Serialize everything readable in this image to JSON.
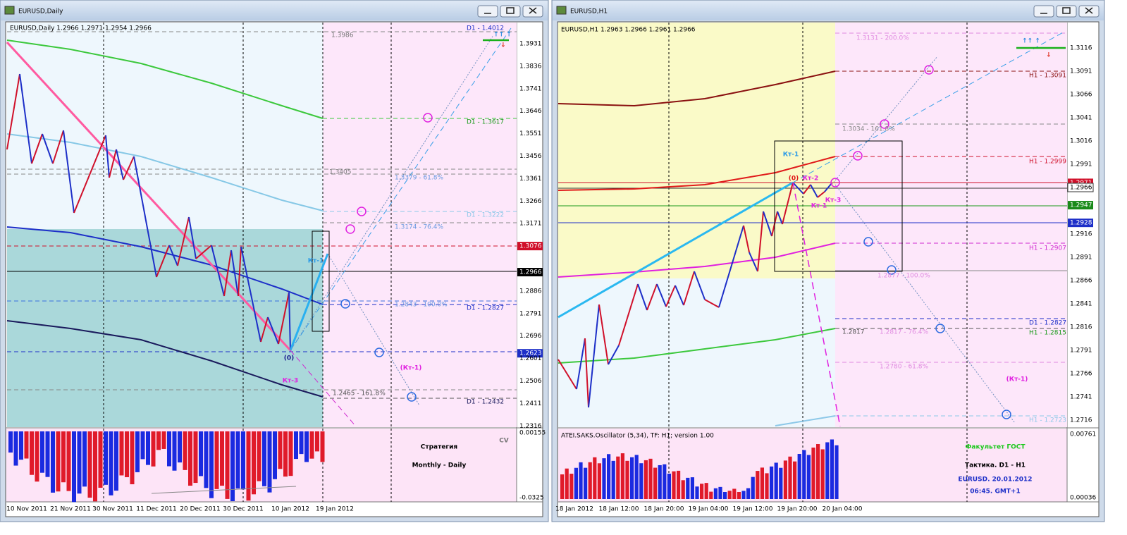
{
  "windows": [
    {
      "title": "EURUSD,Daily",
      "info": "EURUSD,Daily  1.2966 1.2971 1.2954 1.2966",
      "price_axis": [
        "1.3931",
        "1.3836",
        "1.3741",
        "1.3646",
        "1.3551",
        "1.3456",
        "1.3361",
        "1.3266",
        "1.3171",
        "1.3076",
        "1.2966",
        "1.2886",
        "1.2791",
        "1.2696",
        "1.2623",
        "1.2601",
        "1.2506",
        "1.2411",
        "1.2316"
      ],
      "time_axis": [
        "10 Nov 2011",
        "21 Nov 2011",
        "30 Nov 2011",
        "11 Dec 2011",
        "20 Dec 2011",
        "30 Dec 2011",
        "10 Jan 2012",
        "19 Jan 2012"
      ],
      "level_labels": [
        "1.3986",
        "D1 - 1.4012",
        "D1 - 1.3617",
        "1.3405",
        "1.3379 - 61.8%",
        "D1 - 1.3222",
        "1.3174 - 76.4%",
        "1.2843 - 100.0%",
        "D1 - 1.2827",
        "1.2465 - 161.8%",
        "D1 - 1.2432"
      ],
      "annotations": [
        "Кт-1",
        "(0)",
        "Кт-3",
        "(Кт-1)"
      ],
      "oscillator_axis": [
        "0.00155",
        "-0.0325"
      ],
      "notes": [
        "Стратегия",
        "Monthly - Daily",
        "CV"
      ]
    },
    {
      "title": "EURUSD,H1",
      "info": "EURUSD,H1  1.2963 1.2966 1.2961 1.2966",
      "price_axis": [
        "1.3116",
        "1.3091",
        "1.3066",
        "1.3041",
        "1.3016",
        "1.2991",
        "1.2971",
        "1.2966",
        "1.2947",
        "1.2928",
        "1.2916",
        "1.2891",
        "1.2866",
        "1.2841",
        "1.2816",
        "1.2791",
        "1.2766",
        "1.2741",
        "1.2716"
      ],
      "time_axis": [
        "18 Jan 2012",
        "18 Jan 12:00",
        "18 Jan 20:00",
        "19 Jan 04:00",
        "19 Jan 12:00",
        "19 Jan 20:00",
        "20 Jan 04:00"
      ],
      "level_labels": [
        "1.3131 - 200.0%",
        "H1 - 1.3091",
        "1.3034 - 161.8%",
        "H1 - 1.2999",
        "H1 - 1.2907",
        "1.2877 - 100.0%",
        "D1 - 1.2827",
        "1.2817",
        "1.2817 - 76.4%",
        "H1 - 1.2815",
        "1.2780 - 61.8%",
        "H1 - 1.2723"
      ],
      "annotations": [
        "Кт-1",
        "(0)",
        "Кт-2",
        "Кт-3",
        "Кт-1",
        "(Кт-1)"
      ],
      "oscillator_label": "ATEI.SAKS.Oscillator (5,34), TF: H1; version 1.00",
      "oscillator_axis": [
        "0.00761",
        "0.00036"
      ],
      "notes": [
        "Факультет ГОСТ",
        "Тактика. D1 - H1",
        "EURUSD. 20.01.2012",
        "06:45. GMT+1"
      ]
    }
  ]
}
